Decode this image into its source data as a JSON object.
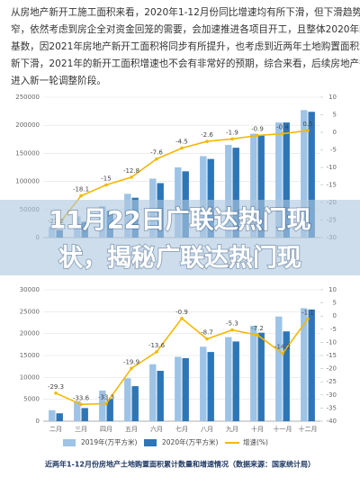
{
  "article": {
    "lines": [
      "从房地产新开工施工面积来看，2020年1-12月份同比增速均有所下滑，但下滑趋势逐渐收",
      "窄，依然考虑到房企全对资金回笼的需要，会加速推进各项目开工，且整体2020年新开工的压",
      "基数，因2021年房地产新开工面积将同步有所提升，也考虑到近两年土地购置面积增速的",
      "新下滑，2021年的新开工面积增速也不会有非常好的预期，综合来看，后续房地产行业将",
      "进入新一轮调整阶段。"
    ]
  },
  "overlay_title": [
    "11月22日广联达热门现",
    "状，揭秘广联达热门现"
  ],
  "chart_data": [
    {
      "type": "bar",
      "ylim": [
        0,
        250000
      ],
      "yticks": [
        0,
        50000,
        100000,
        150000,
        200000,
        250000
      ],
      "y2lim": [
        -30,
        10
      ],
      "y2ticks": [
        10,
        5,
        0,
        -5,
        -10,
        -15,
        -20,
        -25,
        -30
      ],
      "series": [
        {
          "name": "2019年(万平方米)",
          "color": "#9dc3e6",
          "values": [
            18814,
            37800,
            56000,
            78000,
            105000,
            125000,
            145000,
            165000,
            185000,
            205000,
            227000
          ]
        },
        {
          "name": "2020年(万平方米)",
          "color": "#2e75b6",
          "values": [
            13694,
            28000,
            48000,
            71000,
            97000,
            118000,
            140000,
            160000,
            182000,
            205000,
            224000
          ]
        },
        {
          "name": "增速(%)",
          "color": "#f5b800",
          "type": "line",
          "axis": "y2",
          "values": [
            -27.2,
            -18.1,
            -15.0,
            -12.8,
            -7.6,
            -4.5,
            -2.6,
            -1.9,
            -0.9,
            -0.4,
            0.5
          ]
        }
      ]
    },
    {
      "type": "bar",
      "categories": [
        "二月",
        "三月",
        "四月",
        "五月",
        "六月",
        "七月",
        "八月",
        "九月",
        "十月",
        "十一月",
        "十二月"
      ],
      "ylim": [
        0,
        30000
      ],
      "yticks": [
        0,
        5000,
        10000,
        15000,
        20000,
        25000,
        30000
      ],
      "y2lim": [
        -40,
        10
      ],
      "y2ticks": [
        10,
        5,
        0,
        -5,
        -10,
        -15,
        -20,
        -25,
        -30,
        -35,
        -40
      ],
      "series": [
        {
          "name": "2019年(万平方米)",
          "color": "#9dc3e6",
          "values": [
            2500,
            4600,
            7000,
            9800,
            13000,
            14700,
            17000,
            19200,
            21800,
            23900,
            25800
          ]
        },
        {
          "name": "2020年(万平方米)",
          "color": "#2e75b6",
          "values": [
            1800,
            3000,
            5000,
            8000,
            11500,
            14400,
            15800,
            18200,
            20200,
            20500,
            25500
          ]
        },
        {
          "name": "增速(%)",
          "color": "#f5b800",
          "type": "line",
          "axis": "y2",
          "values": [
            -29.3,
            -33.6,
            -33.3,
            -19.9,
            -13.6,
            -0.9,
            -8.7,
            -5.3,
            -7.2,
            -14.2,
            -1.1
          ]
        }
      ],
      "caption": "近两年1-12月份房地产土地购置面积累计数量和增速情况（数据来源：国家统计局）"
    }
  ]
}
